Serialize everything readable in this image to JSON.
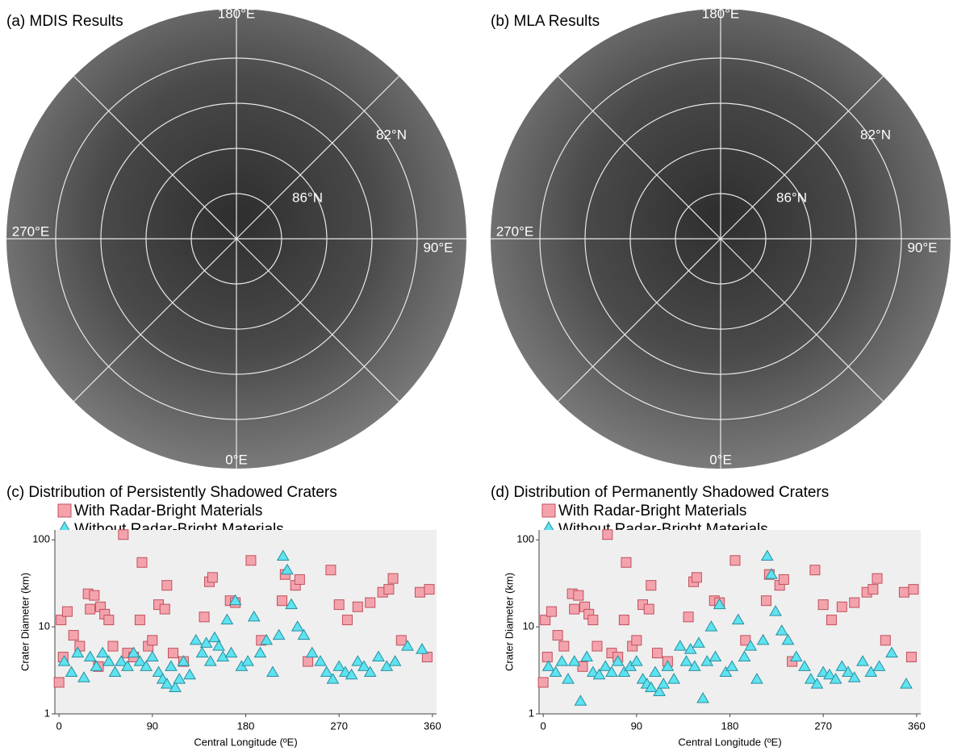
{
  "maps": [
    {
      "title": "(a) MDIS Results",
      "labels": [
        "180°E",
        "270°E",
        "90°E",
        "0°E",
        "82°N",
        "86°N"
      ]
    },
    {
      "title": "(b) MLA Results",
      "labels": [
        "180°E",
        "270°E",
        "90°E",
        "0°E",
        "82°N",
        "86°N"
      ]
    }
  ],
  "chart_data": [
    {
      "type": "scatter",
      "title": "(c) Distribution of Persistently Shadowed Craters",
      "x_label": "Central Longitude (ºE)",
      "y_label": "Crater Diameter (km)",
      "xlim": [
        -4,
        364
      ],
      "ylim": [
        1,
        130
      ],
      "xticks": [
        0,
        90,
        180,
        270,
        360
      ],
      "yticks": [
        1,
        10,
        100
      ],
      "yscale": "log",
      "series": [
        {
          "name": "With Radar-Bright Materials",
          "color": "#f4a3ad",
          "marker": "square",
          "x": [
            0,
            2,
            4,
            8,
            14,
            20,
            28,
            30,
            34,
            38,
            40,
            44,
            48,
            52,
            62,
            66,
            72,
            78,
            80,
            86,
            90,
            96,
            102,
            104,
            110,
            120,
            140,
            145,
            148,
            165,
            170,
            185,
            195,
            215,
            218,
            228,
            232,
            240,
            262,
            270,
            278,
            288,
            300,
            312,
            318,
            322,
            330,
            348,
            355,
            357
          ],
          "values": [
            2.3,
            12,
            4.5,
            15,
            8,
            6,
            24,
            16,
            23,
            3.5,
            17,
            14,
            12,
            6,
            115,
            5,
            4.5,
            12,
            55,
            6,
            7,
            18,
            16,
            30,
            5,
            4,
            13,
            33,
            37,
            20,
            19,
            58,
            7,
            20,
            40,
            30,
            35,
            4,
            45,
            18,
            12,
            17,
            19,
            25,
            27,
            36,
            7,
            25,
            4.5,
            27
          ]
        },
        {
          "name": "Without Radar-Bright Materials",
          "color": "#5ee3f0",
          "marker": "triangle",
          "x": [
            5,
            12,
            18,
            24,
            30,
            36,
            42,
            48,
            54,
            60,
            66,
            72,
            78,
            84,
            90,
            96,
            100,
            104,
            108,
            112,
            116,
            120,
            126,
            132,
            138,
            142,
            146,
            150,
            154,
            158,
            162,
            166,
            170,
            176,
            182,
            188,
            194,
            200,
            206,
            212,
            216,
            220,
            224,
            230,
            236,
            244,
            252,
            258,
            264,
            270,
            276,
            282,
            288,
            294,
            300,
            308,
            316,
            324,
            336,
            350
          ],
          "values": [
            4,
            3,
            5,
            2.6,
            4.5,
            3.5,
            5,
            4,
            3,
            4,
            3.5,
            5,
            4,
            3.5,
            4.5,
            3,
            2.5,
            2.2,
            3.5,
            2,
            2.5,
            4,
            2.8,
            7,
            5,
            6.5,
            4,
            7.5,
            6,
            4.5,
            12,
            5,
            20,
            3.5,
            4,
            13,
            5,
            7,
            3,
            8,
            65,
            45,
            18,
            10,
            8,
            5,
            4,
            3,
            2.5,
            3.5,
            3,
            2.8,
            4,
            3.5,
            3,
            4.5,
            3.5,
            4,
            6,
            5.5
          ]
        }
      ]
    },
    {
      "type": "scatter",
      "title": "(d) Distribution of Permanently Shadowed Craters",
      "x_label": "Central Longitude (ºE)",
      "y_label": "Crater Diameter (km)",
      "xlim": [
        -4,
        364
      ],
      "ylim": [
        1,
        130
      ],
      "xticks": [
        0,
        90,
        180,
        270,
        360
      ],
      "yticks": [
        1,
        10,
        100
      ],
      "yscale": "log",
      "series": [
        {
          "name": "With Radar-Bright Materials",
          "color": "#f4a3ad",
          "marker": "square",
          "x": [
            0,
            2,
            4,
            8,
            14,
            20,
            28,
            30,
            34,
            38,
            40,
            44,
            48,
            52,
            62,
            66,
            72,
            78,
            80,
            86,
            90,
            96,
            102,
            104,
            110,
            120,
            140,
            145,
            148,
            165,
            170,
            185,
            195,
            215,
            218,
            228,
            232,
            240,
            262,
            270,
            278,
            288,
            300,
            312,
            318,
            322,
            330,
            348,
            355,
            357
          ],
          "values": [
            2.3,
            12,
            4.5,
            15,
            8,
            6,
            24,
            16,
            23,
            3.5,
            17,
            14,
            12,
            6,
            115,
            5,
            4.5,
            12,
            55,
            6,
            7,
            18,
            16,
            30,
            5,
            4,
            13,
            33,
            37,
            20,
            19,
            58,
            7,
            20,
            40,
            30,
            35,
            4,
            45,
            18,
            12,
            17,
            19,
            25,
            27,
            36,
            7,
            25,
            4.5,
            27
          ]
        },
        {
          "name": "Without Radar-Bright Materials",
          "color": "#5ee3f0",
          "marker": "triangle",
          "x": [
            5,
            12,
            18,
            24,
            30,
            36,
            42,
            48,
            54,
            60,
            66,
            72,
            78,
            84,
            90,
            96,
            100,
            104,
            108,
            112,
            116,
            120,
            126,
            132,
            138,
            142,
            146,
            150,
            154,
            158,
            162,
            166,
            170,
            176,
            182,
            188,
            194,
            200,
            206,
            212,
            216,
            220,
            224,
            230,
            236,
            244,
            252,
            258,
            264,
            270,
            276,
            282,
            288,
            294,
            300,
            308,
            316,
            324,
            336,
            350
          ],
          "values": [
            3.5,
            3,
            4,
            2.5,
            4,
            1.4,
            4.5,
            3,
            2.8,
            3.5,
            3,
            4,
            3,
            3.5,
            4,
            2.5,
            2.2,
            2,
            3,
            1.8,
            2.2,
            3.5,
            2.5,
            6,
            4,
            5.5,
            3.5,
            6.5,
            1.5,
            4,
            10,
            4.5,
            18,
            3,
            3.5,
            12,
            4.5,
            6,
            2.5,
            7,
            65,
            40,
            15,
            9,
            7,
            4.5,
            3.5,
            2.5,
            2.2,
            3,
            2.8,
            2.5,
            3.5,
            3,
            2.6,
            4,
            3,
            3.5,
            5,
            2.2
          ]
        }
      ]
    }
  ]
}
